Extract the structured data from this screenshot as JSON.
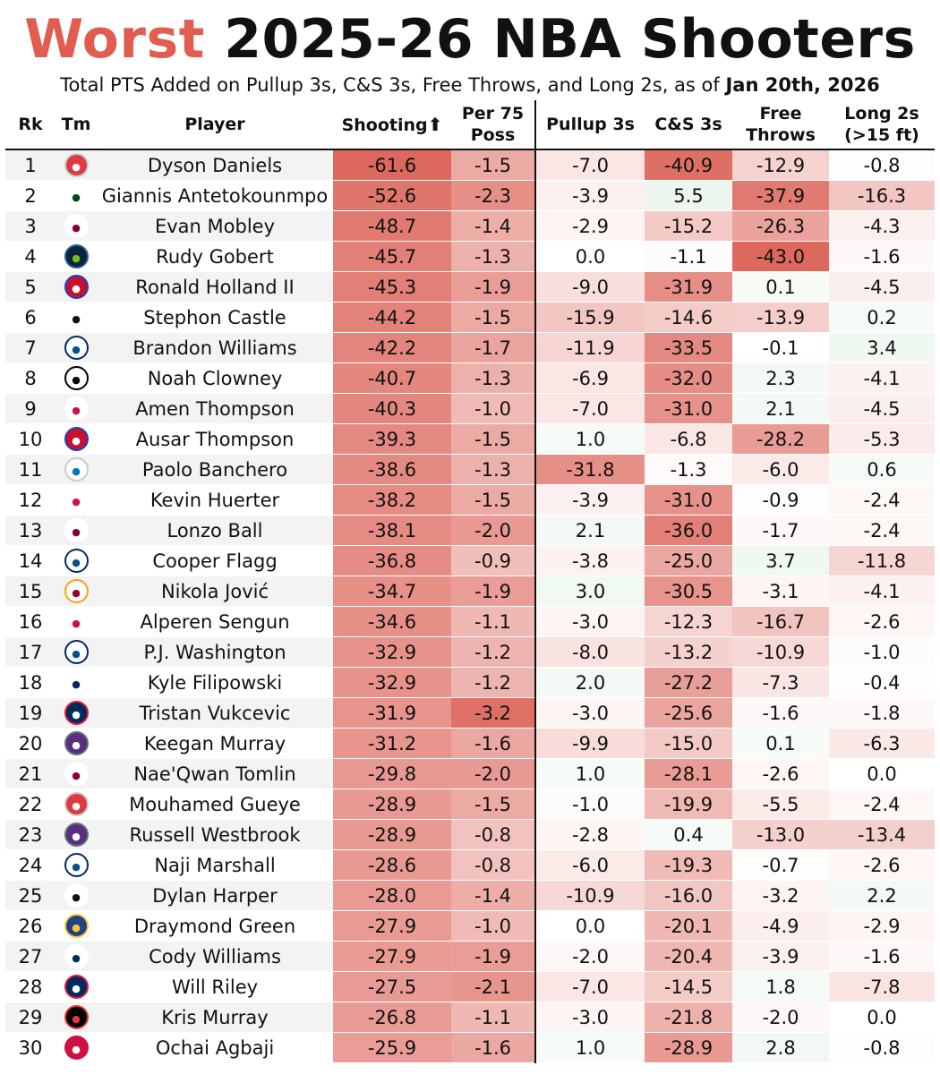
{
  "title": {
    "worst": "Worst",
    "rest": "2025-26 NBA Shooters"
  },
  "subtitle": {
    "text": "Total PTS Added on Pullup 3s, C&S 3s, Free Throws, and Long 2s, as of",
    "date": "Jan 20th, 2026"
  },
  "columns": {
    "rk": "Rk",
    "tm": "Tm",
    "player": "Player",
    "shooting": "Shooting",
    "shooting_arrow": "⬆",
    "per75_line1": "Per 75",
    "per75_line2": "Poss",
    "pullup": "Pullup 3s",
    "cs": "C&S 3s",
    "ft_line1": "Free",
    "ft_line2": "Throws",
    "long2_line1": "Long 2s",
    "long2_line2": "(>15 ft)"
  },
  "colors": {
    "negative": "#d9574b",
    "positive": "#cfe9d6",
    "title_accent": "#e35c50"
  },
  "team_logos": {
    "ATL": {
      "icon": "hawks-logo-icon",
      "bg": "#e03a3e",
      "fg": "#ffffff",
      "ring": "#c4ced4"
    },
    "MIL": {
      "icon": "bucks-logo-icon",
      "bg": "#ffffff",
      "fg": "#00471b",
      "ring": "#ffffff"
    },
    "CLE": {
      "icon": "cavaliers-logo-icon",
      "bg": "#ffffff",
      "fg": "#860038",
      "ring": "#ffffff"
    },
    "MIN": {
      "icon": "timberwolves-logo-icon",
      "bg": "#0c2340",
      "fg": "#78be20",
      "ring": "#236192"
    },
    "DET": {
      "icon": "pistons-logo-icon",
      "bg": "#c8102e",
      "fg": "#ffffff",
      "ring": "#1d42ba"
    },
    "SAS": {
      "icon": "spurs-logo-icon",
      "bg": "#ffffff",
      "fg": "#111111",
      "ring": "#ffffff"
    },
    "DAL": {
      "icon": "mavericks-logo-icon",
      "bg": "#ffffff",
      "fg": "#00538c",
      "ring": "#002b5e"
    },
    "BKN": {
      "icon": "nets-logo-icon",
      "bg": "#ffffff",
      "fg": "#000000",
      "ring": "#000000"
    },
    "HOU": {
      "icon": "rockets-logo-icon",
      "bg": "#ffffff",
      "fg": "#ce1141",
      "ring": "#ffffff"
    },
    "ORL": {
      "icon": "magic-logo-icon",
      "bg": "#ffffff",
      "fg": "#0077c0",
      "ring": "#c4ced4"
    },
    "CHI": {
      "icon": "bulls-logo-icon",
      "bg": "#ffffff",
      "fg": "#ce1141",
      "ring": "#ffffff"
    },
    "MIA": {
      "icon": "heat-logo-icon",
      "bg": "#ffffff",
      "fg": "#98002e",
      "ring": "#f9a01b"
    },
    "UTA": {
      "icon": "jazz-logo-icon",
      "bg": "#ffffff",
      "fg": "#002b5c",
      "ring": "#ffffff"
    },
    "WAS": {
      "icon": "wizards-logo-icon",
      "bg": "#002b5c",
      "fg": "#ffffff",
      "ring": "#e31837"
    },
    "SAC": {
      "icon": "kings-logo-icon",
      "bg": "#5a2d81",
      "fg": "#ffffff",
      "ring": "#63727a"
    },
    "GSW": {
      "icon": "warriors-logo-icon",
      "bg": "#1d428a",
      "fg": "#ffc72c",
      "ring": "#ffc72c"
    },
    "POR": {
      "icon": "trail-blazers-logo-icon",
      "bg": "#000000",
      "fg": "#e03a3e",
      "ring": "#e03a3e"
    },
    "TOR": {
      "icon": "raptors-logo-icon",
      "bg": "#ce1141",
      "fg": "#ffffff",
      "ring": "#ce1141"
    }
  },
  "chart_data": {
    "type": "table",
    "title": "Worst 2025-26 NBA Shooters",
    "subtitle": "Total PTS Added on Pullup 3s, C&S 3s, Free Throws, and Long 2s, as of Jan 20th, 2026",
    "columns": [
      "Rk",
      "Tm",
      "Player",
      "Shooting",
      "Per 75 Poss",
      "Pullup 3s",
      "C&S 3s",
      "Free Throws",
      "Long 2s (>15 ft)"
    ],
    "rows": [
      {
        "rk": "1",
        "team": "ATL",
        "player": "Dyson Daniels",
        "shooting": -61.6,
        "per75": -1.5,
        "pullup": -7.0,
        "cs": -40.9,
        "ft": -12.9,
        "long2": -0.8
      },
      {
        "rk": "2",
        "team": "MIL",
        "player": "Giannis Antetokounmpo",
        "shooting": -52.6,
        "per75": -2.3,
        "pullup": -3.9,
        "cs": 5.5,
        "ft": -37.9,
        "long2": -16.3
      },
      {
        "rk": "3",
        "team": "CLE",
        "player": "Evan Mobley",
        "shooting": -48.7,
        "per75": -1.4,
        "pullup": -2.9,
        "cs": -15.2,
        "ft": -26.3,
        "long2": -4.3
      },
      {
        "rk": "4",
        "team": "MIN",
        "player": "Rudy Gobert",
        "shooting": -45.7,
        "per75": -1.3,
        "pullup": 0.0,
        "cs": -1.1,
        "ft": -43.0,
        "long2": -1.6
      },
      {
        "rk": "5",
        "team": "DET",
        "player": "Ronald Holland II",
        "shooting": -45.3,
        "per75": -1.9,
        "pullup": -9.0,
        "cs": -31.9,
        "ft": 0.1,
        "long2": -4.5
      },
      {
        "rk": "6",
        "team": "SAS",
        "player": "Stephon Castle",
        "shooting": -44.2,
        "per75": -1.5,
        "pullup": -15.9,
        "cs": -14.6,
        "ft": -13.9,
        "long2": 0.2
      },
      {
        "rk": "7",
        "team": "DAL",
        "player": "Brandon Williams",
        "shooting": -42.2,
        "per75": -1.7,
        "pullup": -11.9,
        "cs": -33.5,
        "ft": -0.1,
        "long2": 3.4
      },
      {
        "rk": "8",
        "team": "BKN",
        "player": "Noah Clowney",
        "shooting": -40.7,
        "per75": -1.3,
        "pullup": -6.9,
        "cs": -32.0,
        "ft": 2.3,
        "long2": -4.1
      },
      {
        "rk": "9",
        "team": "HOU",
        "player": "Amen Thompson",
        "shooting": -40.3,
        "per75": -1.0,
        "pullup": -7.0,
        "cs": -31.0,
        "ft": 2.1,
        "long2": -4.5
      },
      {
        "rk": "10",
        "team": "DET",
        "player": "Ausar Thompson",
        "shooting": -39.3,
        "per75": -1.5,
        "pullup": 1.0,
        "cs": -6.8,
        "ft": -28.2,
        "long2": -5.3
      },
      {
        "rk": "11",
        "team": "ORL",
        "player": "Paolo Banchero",
        "shooting": -38.6,
        "per75": -1.3,
        "pullup": -31.8,
        "cs": -1.3,
        "ft": -6.0,
        "long2": 0.6
      },
      {
        "rk": "12",
        "team": "CHI",
        "player": "Kevin Huerter",
        "shooting": -38.2,
        "per75": -1.5,
        "pullup": -3.9,
        "cs": -31.0,
        "ft": -0.9,
        "long2": -2.4
      },
      {
        "rk": "13",
        "team": "CLE",
        "player": "Lonzo Ball",
        "shooting": -38.1,
        "per75": -2.0,
        "pullup": 2.1,
        "cs": -36.0,
        "ft": -1.7,
        "long2": -2.4
      },
      {
        "rk": "14",
        "team": "DAL",
        "player": "Cooper Flagg",
        "shooting": -36.8,
        "per75": -0.9,
        "pullup": -3.8,
        "cs": -25.0,
        "ft": 3.7,
        "long2": -11.8
      },
      {
        "rk": "15",
        "team": "MIA",
        "player": "Nikola Jović",
        "shooting": -34.7,
        "per75": -1.9,
        "pullup": 3.0,
        "cs": -30.5,
        "ft": -3.1,
        "long2": -4.1
      },
      {
        "rk": "16",
        "team": "HOU",
        "player": "Alperen Sengun",
        "shooting": -34.6,
        "per75": -1.1,
        "pullup": -3.0,
        "cs": -12.3,
        "ft": -16.7,
        "long2": -2.6
      },
      {
        "rk": "17",
        "team": "DAL",
        "player": "P.J. Washington",
        "shooting": -32.9,
        "per75": -1.2,
        "pullup": -8.0,
        "cs": -13.2,
        "ft": -10.9,
        "long2": -1.0
      },
      {
        "rk": "18",
        "team": "UTA",
        "player": "Kyle Filipowski",
        "shooting": -32.9,
        "per75": -1.2,
        "pullup": 2.0,
        "cs": -27.2,
        "ft": -7.3,
        "long2": -0.4
      },
      {
        "rk": "19",
        "team": "WAS",
        "player": "Tristan Vukcevic",
        "shooting": -31.9,
        "per75": -3.2,
        "pullup": -3.0,
        "cs": -25.6,
        "ft": -1.6,
        "long2": -1.8
      },
      {
        "rk": "20",
        "team": "SAC",
        "player": "Keegan Murray",
        "shooting": -31.2,
        "per75": -1.6,
        "pullup": -9.9,
        "cs": -15.0,
        "ft": 0.1,
        "long2": -6.3
      },
      {
        "rk": "21",
        "team": "CLE",
        "player": "Nae'Qwan Tomlin",
        "shooting": -29.8,
        "per75": -2.0,
        "pullup": 1.0,
        "cs": -28.1,
        "ft": -2.6,
        "long2": 0.0
      },
      {
        "rk": "22",
        "team": "ATL",
        "player": "Mouhamed Gueye",
        "shooting": -28.9,
        "per75": -1.5,
        "pullup": -1.0,
        "cs": -19.9,
        "ft": -5.5,
        "long2": -2.4
      },
      {
        "rk": "23",
        "team": "SAC",
        "player": "Russell Westbrook",
        "shooting": -28.9,
        "per75": -0.8,
        "pullup": -2.8,
        "cs": 0.4,
        "ft": -13.0,
        "long2": -13.4
      },
      {
        "rk": "24",
        "team": "DAL",
        "player": "Naji Marshall",
        "shooting": -28.6,
        "per75": -0.8,
        "pullup": -6.0,
        "cs": -19.3,
        "ft": -0.7,
        "long2": -2.6
      },
      {
        "rk": "25",
        "team": "SAS",
        "player": "Dylan Harper",
        "shooting": -28.0,
        "per75": -1.4,
        "pullup": -10.9,
        "cs": -16.0,
        "ft": -3.2,
        "long2": 2.2
      },
      {
        "rk": "26",
        "team": "GSW",
        "player": "Draymond Green",
        "shooting": -27.9,
        "per75": -1.0,
        "pullup": 0.0,
        "cs": -20.1,
        "ft": -4.9,
        "long2": -2.9
      },
      {
        "rk": "27",
        "team": "UTA",
        "player": "Cody Williams",
        "shooting": -27.9,
        "per75": -1.9,
        "pullup": -2.0,
        "cs": -20.4,
        "ft": -3.9,
        "long2": -1.6
      },
      {
        "rk": "28",
        "team": "WAS",
        "player": "Will Riley",
        "shooting": -27.5,
        "per75": -2.1,
        "pullup": -7.0,
        "cs": -14.5,
        "ft": 1.8,
        "long2": -7.8
      },
      {
        "rk": "29",
        "team": "POR",
        "player": "Kris Murray",
        "shooting": -26.8,
        "per75": -1.1,
        "pullup": -3.0,
        "cs": -21.8,
        "ft": -2.0,
        "long2": 0.0
      },
      {
        "rk": "30",
        "team": "TOR",
        "player": "Ochai Agbaji",
        "shooting": -25.9,
        "per75": -1.6,
        "pullup": 1.0,
        "cs": -28.9,
        "ft": 2.8,
        "long2": -0.8
      }
    ]
  }
}
